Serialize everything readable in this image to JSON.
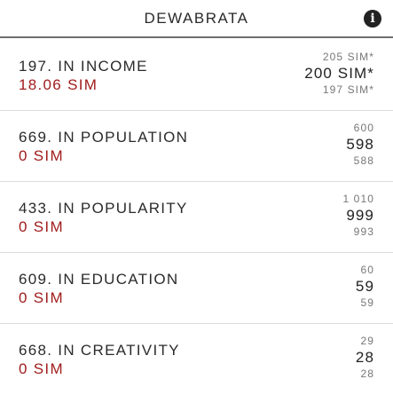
{
  "header": {
    "title": "DEWABRATA",
    "info_icon": "info-icon"
  },
  "rows": [
    {
      "rank": "197. IN INCOME",
      "reward": "18.06 SIM",
      "above": "205 SIM*",
      "current": "200 SIM*",
      "below": "197 SIM*"
    },
    {
      "rank": "669. IN POPULATION",
      "reward": "0 SIM",
      "above": "600",
      "current": "598",
      "below": "588"
    },
    {
      "rank": "433. IN POPULARITY",
      "reward": "0 SIM",
      "above": "1 010",
      "current": "999",
      "below": "993"
    },
    {
      "rank": "609. IN EDUCATION",
      "reward": "0 SIM",
      "above": "60",
      "current": "59",
      "below": "59"
    },
    {
      "rank": "668. IN CREATIVITY",
      "reward": "0 SIM",
      "above": "29",
      "current": "28",
      "below": "28"
    }
  ],
  "colors": {
    "reward": "#a01c1c",
    "divider": "#6e6e6e"
  }
}
